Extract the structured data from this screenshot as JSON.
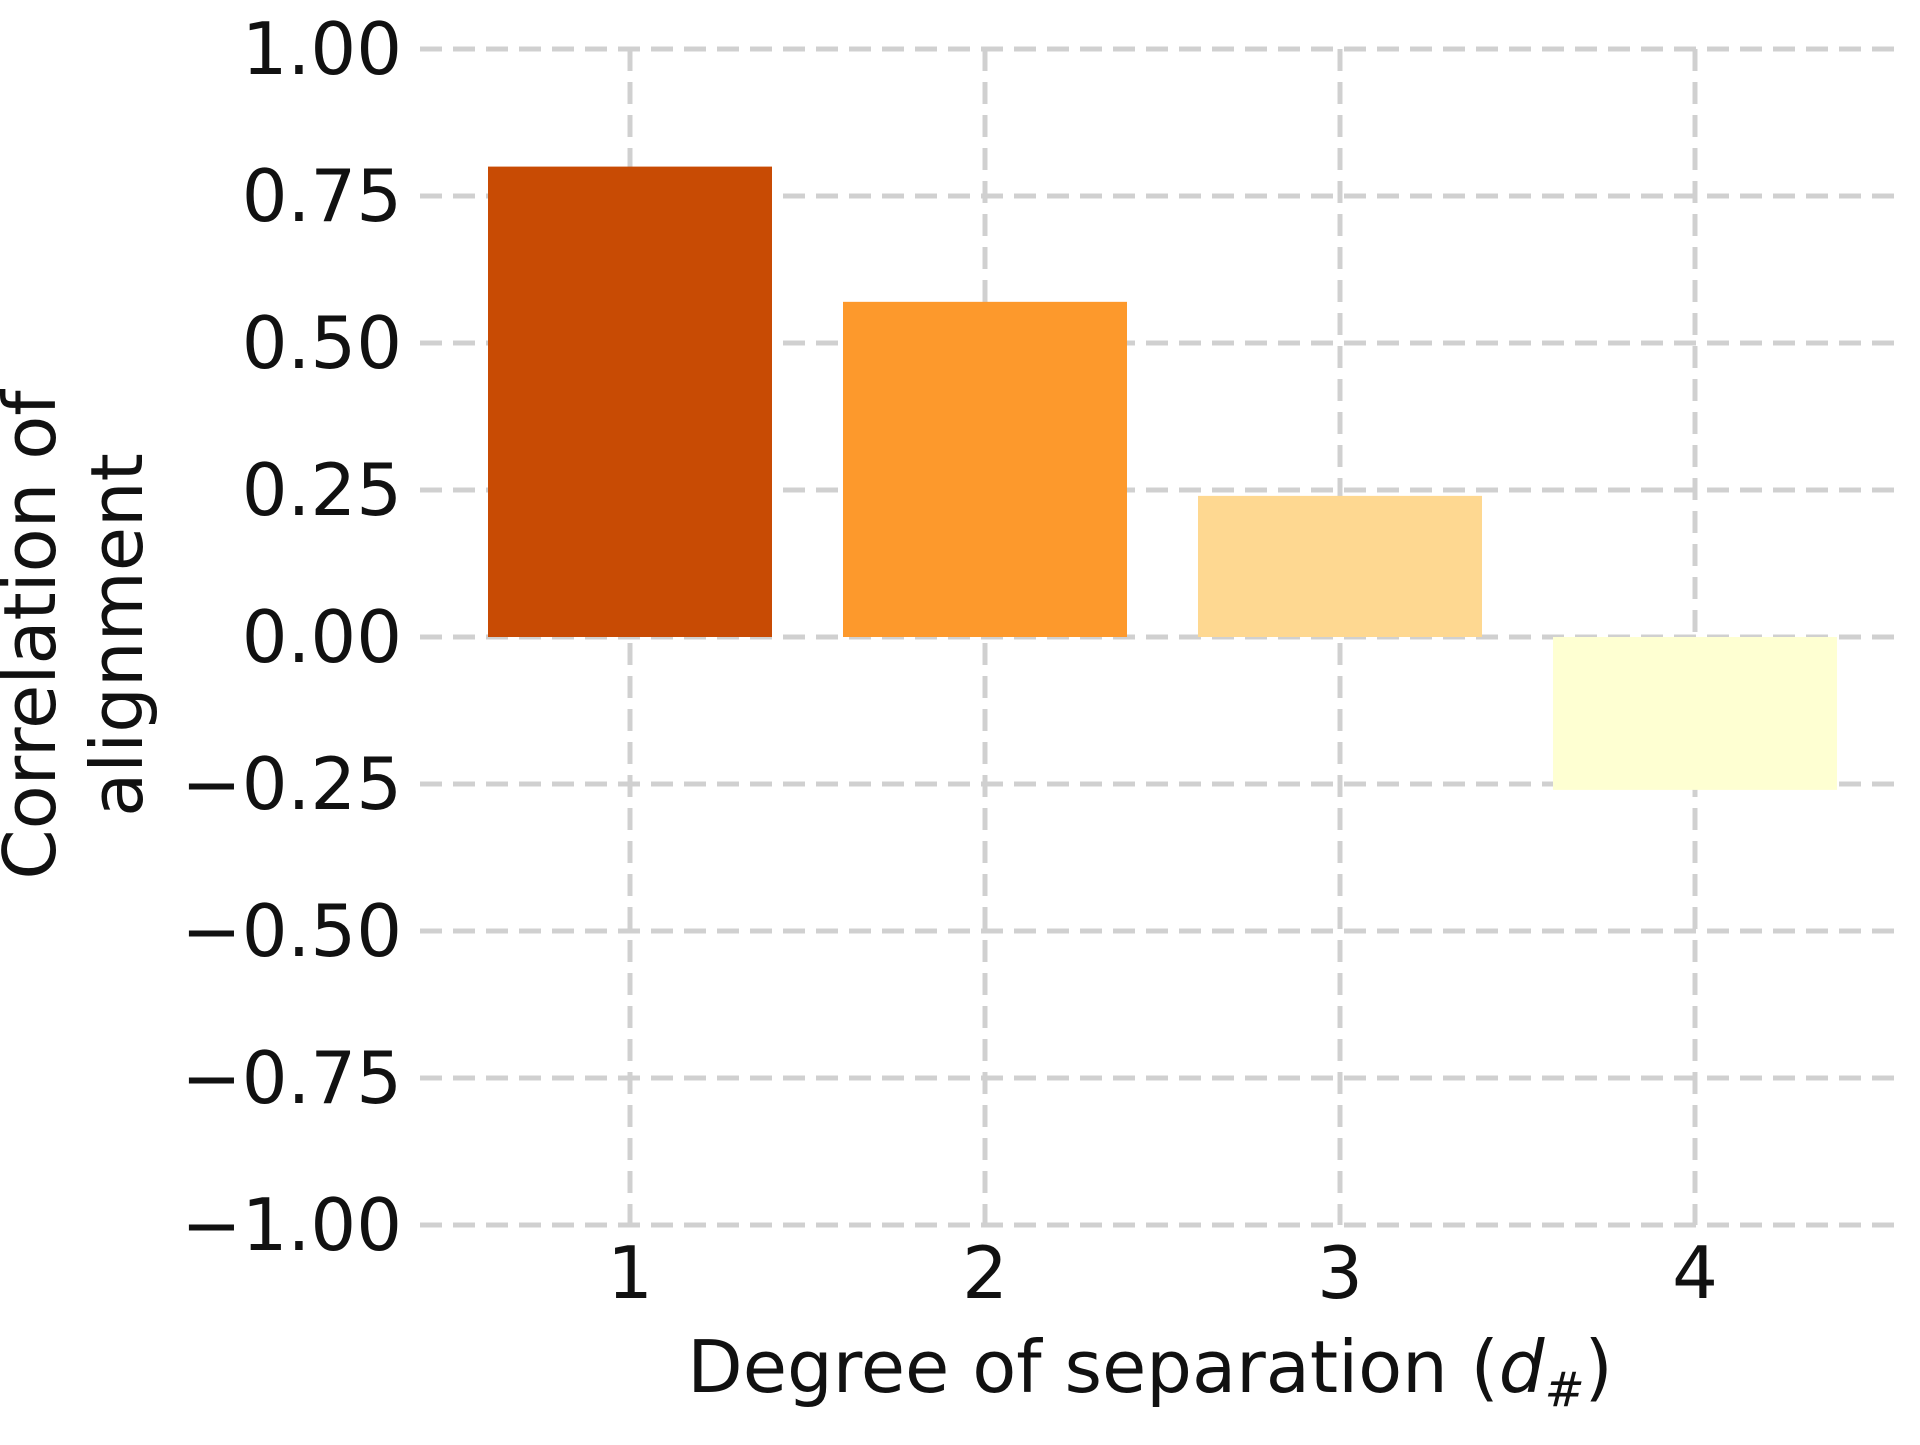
{
  "chart_data": {
    "type": "bar",
    "title": "",
    "categories": [
      "1",
      "2",
      "3",
      "4"
    ],
    "values": [
      0.8,
      0.57,
      0.24,
      -0.26
    ],
    "colors": [
      "#c84b04",
      "#fd992c",
      "#fed891",
      "#feffd2"
    ],
    "xlabel": "Degree of separation (",
    "xlabel_symbol": "d",
    "xlabel_subscript": "#",
    "xlabel_close": ")",
    "ylabel_lines": [
      "Correlation of",
      "alignment"
    ],
    "ylim": [
      -1.0,
      1.0
    ],
    "yticks": [
      "1.00",
      "0.75",
      "0.50",
      "0.25",
      "0.00",
      "−0.25",
      "−0.50",
      "−0.75",
      "−1.00"
    ],
    "ytick_values": [
      1.0,
      0.75,
      0.5,
      0.25,
      0.0,
      -0.25,
      -0.5,
      -0.75,
      -1.0
    ],
    "grid": true,
    "grid_color": "#d0d0d0",
    "legend": "none"
  }
}
